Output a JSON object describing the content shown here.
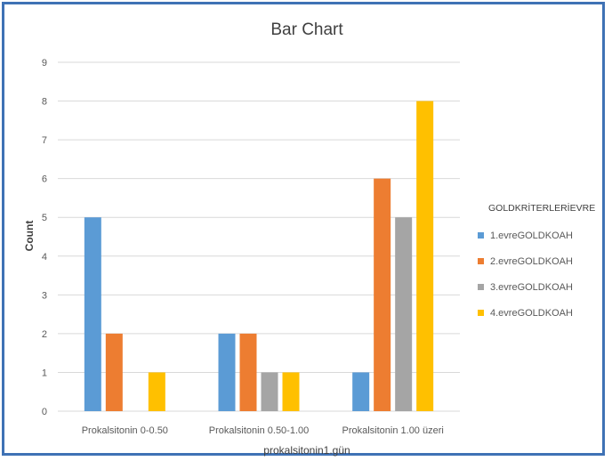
{
  "colors": {
    "frame": "#3f72b5",
    "grid": "#d9d9d9",
    "text": "#595959"
  },
  "chart_data": {
    "type": "bar",
    "title": "Bar Chart",
    "xlabel": "prokalsitonin1.gün",
    "ylabel": "Count",
    "ylim": [
      0,
      9
    ],
    "yticks": [
      0,
      1,
      2,
      3,
      4,
      5,
      6,
      7,
      8,
      9
    ],
    "grid": true,
    "legend_position": "right",
    "legend_title": "GOLDKRİTERLERİEVRE",
    "categories": [
      "Prokalsitonin 0-0.50",
      "Prokalsitonin 0.50-1.00",
      "Prokalsitonin 1.00 üzeri"
    ],
    "series": [
      {
        "name": "1.evreGOLDKOAH",
        "color": "#5b9bd5",
        "values": [
          5,
          2,
          1
        ]
      },
      {
        "name": "2.evreGOLDKOAH",
        "color": "#ed7d31",
        "values": [
          2,
          2,
          6
        ]
      },
      {
        "name": "3.evreGOLDKOAH",
        "color": "#a5a5a5",
        "values": [
          0,
          1,
          5
        ]
      },
      {
        "name": "4.evreGOLDKOAH",
        "color": "#ffc000",
        "values": [
          1,
          1,
          8
        ]
      }
    ]
  }
}
